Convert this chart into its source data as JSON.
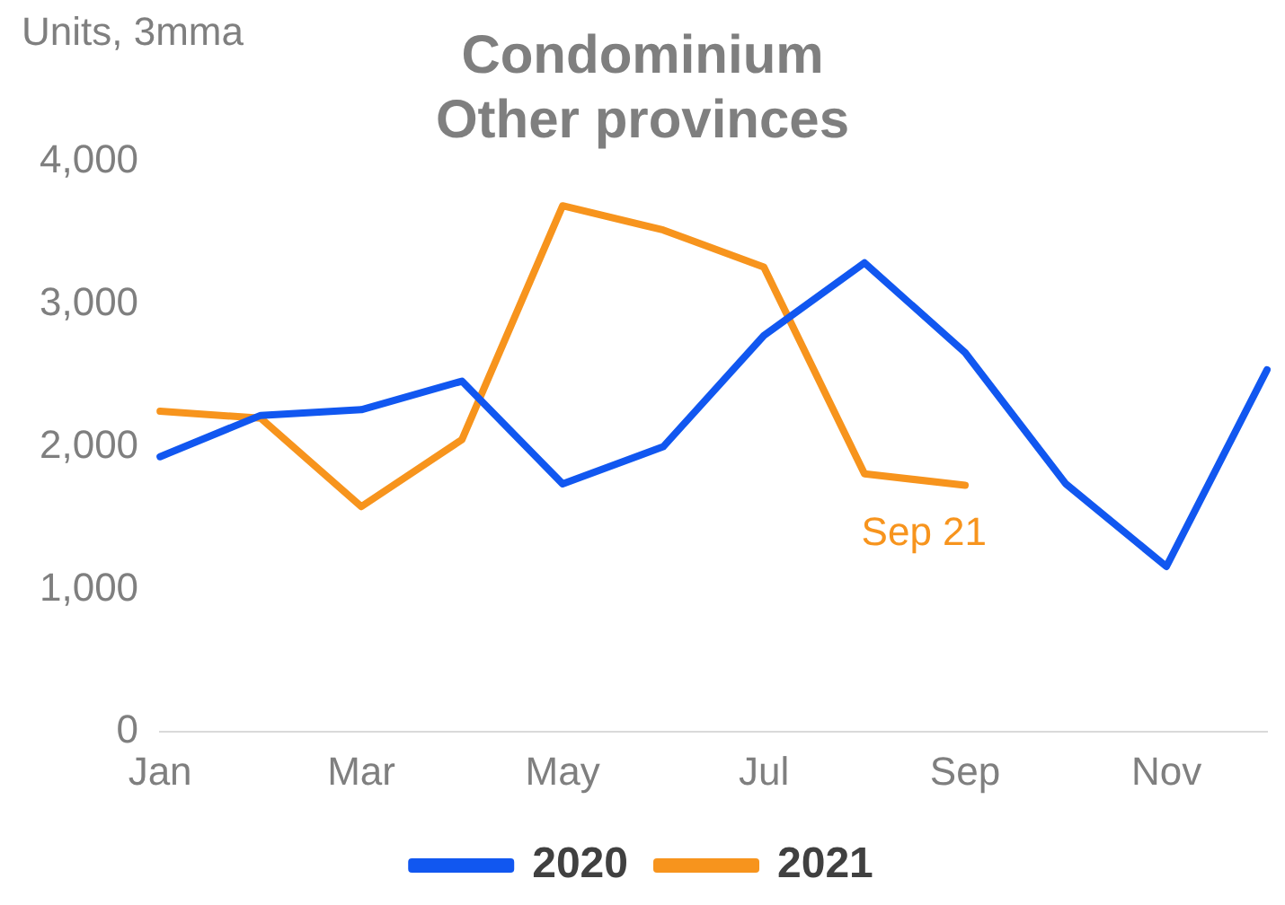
{
  "chart_data": {
    "type": "line",
    "title": [
      "Condominium",
      "Other provinces"
    ],
    "ylabel": "Units, 3mma",
    "categories": [
      "Jan",
      null,
      "Mar",
      null,
      "May",
      null,
      "Jul",
      null,
      "Sep",
      null,
      "Nov",
      null
    ],
    "series": [
      {
        "name": "2020",
        "color": "#1157f0",
        "values": [
          1930,
          2220,
          2260,
          2460,
          1740,
          2000,
          2780,
          3290,
          2660,
          1740,
          1160,
          2540
        ]
      },
      {
        "name": "2021",
        "color": "#f7941d",
        "values": [
          2250,
          2200,
          1580,
          2050,
          3690,
          3520,
          3260,
          1810,
          1730,
          null,
          null,
          null
        ]
      }
    ],
    "ylim": [
      0,
      4000
    ],
    "yticks": [
      0,
      {
        "value": 1000,
        "label": "1,000"
      },
      {
        "value": 2000,
        "label": "2,000"
      },
      {
        "value": 3000,
        "label": "3,000"
      },
      {
        "value": 4000,
        "label": "4,000"
      }
    ],
    "grid": false,
    "legend": "bottom",
    "marker": "none",
    "annotations": [
      {
        "text": "Sep 21",
        "x": "Sep",
        "y": 1730
      }
    ]
  }
}
